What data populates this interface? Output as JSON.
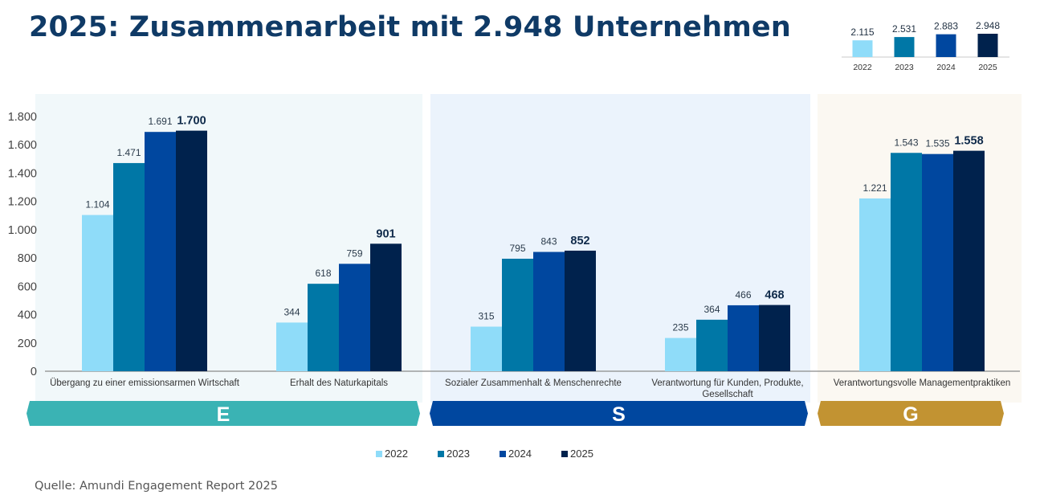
{
  "title": "2025: Zusammenarbeit mit 2.948 Unternehmen",
  "source": "Quelle: Amundi Engagement Report 2025",
  "colors": {
    "2022": "#8fdcf9",
    "2023": "#0077a6",
    "2024": "#00479f",
    "2025": "#00224d",
    "E": "#3ab3b4",
    "S": "#00479f",
    "G": "#c29332",
    "E_bg": "#f1f8fa",
    "S_bg": "#ebf3fc",
    "G_bg": "#fbf8f2"
  },
  "chart_data": [
    {
      "type": "bar",
      "series": [
        {
          "name": "2022",
          "values": [
            1104,
            344,
            315,
            235,
            1221
          ]
        },
        {
          "name": "2023",
          "values": [
            1471,
            618,
            795,
            364,
            1543
          ]
        },
        {
          "name": "2024",
          "values": [
            1691,
            759,
            843,
            466,
            1535
          ]
        },
        {
          "name": "2025",
          "values": [
            1700,
            901,
            852,
            468,
            1558
          ]
        }
      ],
      "value_labels": [
        [
          "1.104",
          "344",
          "315",
          "235",
          "1.221"
        ],
        [
          "1.471",
          "618",
          "795",
          "364",
          "1.543"
        ],
        [
          "1.691",
          "759",
          "843",
          "466",
          "1.535"
        ],
        [
          "1.700",
          "901",
          "852",
          "468",
          "1.558"
        ]
      ],
      "categories": [
        [
          "Übergang zu einer emissionsarmen Wirtschaft"
        ],
        [
          "Erhalt des Naturkapitals"
        ],
        [
          "Sozialer Zusammenhalt & Menschenrechte"
        ],
        [
          "Verantwortung für Kunden, Produkte,",
          "Gesellschaft"
        ],
        [
          "Verantwortungsvolle Managementpraktiken"
        ]
      ],
      "yticks": [
        0,
        200,
        400,
        600,
        800,
        1000,
        1200,
        1400,
        1600,
        1800
      ],
      "ytick_labels": [
        "0",
        "200",
        "400",
        "600",
        "800",
        "1.000",
        "1.200",
        "1.400",
        "1.600",
        "1.800"
      ],
      "ylim": [
        0,
        1800
      ],
      "groups": [
        {
          "label": "E",
          "categories": [
            0,
            1
          ]
        },
        {
          "label": "S",
          "categories": [
            2,
            3
          ]
        },
        {
          "label": "G",
          "categories": [
            4
          ]
        }
      ],
      "legend": [
        "2022",
        "2023",
        "2024",
        "2025"
      ],
      "legend_position": "bottom",
      "grid": false
    },
    {
      "type": "bar",
      "categories": [
        "2022",
        "2023",
        "2024",
        "2025"
      ],
      "values": [
        2115,
        2531,
        2883,
        2948
      ],
      "value_labels": [
        "2.115",
        "2.531",
        "2.883",
        "2.948"
      ]
    }
  ]
}
